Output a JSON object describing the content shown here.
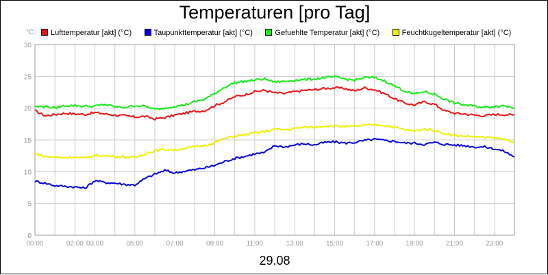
{
  "chart_data": {
    "type": "line",
    "title": "Temperaturen [pro Tag]",
    "y_unit_label": "°C",
    "xlabel": "29.08",
    "ylim": [
      0,
      30
    ],
    "y_ticks": [
      "0",
      "5",
      "10",
      "15",
      "20",
      "25",
      "30"
    ],
    "x_ticks": [
      {
        "hour": 0,
        "label": "00:00"
      },
      {
        "hour": 2,
        "label": "02:00"
      },
      {
        "hour": 3,
        "label": "03:00"
      },
      {
        "hour": 5,
        "label": "05:00"
      },
      {
        "hour": 7,
        "label": "07:00"
      },
      {
        "hour": 9,
        "label": "09:00"
      },
      {
        "hour": 11,
        "label": "11:00"
      },
      {
        "hour": 13,
        "label": "13:00"
      },
      {
        "hour": 15,
        "label": "15:00"
      },
      {
        "hour": 17,
        "label": "17:00"
      },
      {
        "hour": 19,
        "label": "19:00"
      },
      {
        "hour": 21,
        "label": "21:00"
      },
      {
        "hour": 23,
        "label": "23:00"
      }
    ],
    "x_hours": [
      0,
      0.5,
      1,
      1.5,
      2,
      2.5,
      3,
      3.5,
      4,
      4.5,
      5,
      5.5,
      6,
      6.5,
      7,
      7.5,
      8,
      8.5,
      9,
      9.5,
      10,
      10.5,
      11,
      11.5,
      12,
      12.5,
      13,
      13.5,
      14,
      14.5,
      15,
      15.5,
      16,
      16.5,
      17,
      17.5,
      18,
      18.5,
      19,
      19.5,
      20,
      20.5,
      21,
      21.5,
      22,
      22.5,
      23,
      23.5,
      24
    ],
    "legend_position": "top",
    "grid": true,
    "series": [
      {
        "name": "Lufttemperatur [akt] (°C)",
        "color": "#ee1111",
        "values": [
          19.6,
          18.8,
          19.0,
          19.2,
          19.1,
          19.0,
          19.3,
          19.1,
          18.9,
          18.8,
          18.6,
          18.7,
          18.3,
          18.5,
          18.9,
          19.2,
          19.5,
          19.6,
          20.4,
          21.0,
          21.8,
          22.1,
          22.6,
          22.8,
          22.4,
          22.3,
          22.6,
          22.8,
          22.9,
          23.1,
          23.2,
          23.1,
          22.7,
          23.2,
          22.9,
          22.3,
          21.5,
          20.8,
          20.5,
          21.0,
          20.6,
          19.6,
          19.2,
          19.1,
          18.9,
          18.8,
          19.0,
          19.0,
          18.9
        ]
      },
      {
        "name": "Taupunkttemperatur [akt] (°C)",
        "color": "#0000dd",
        "values": [
          8.5,
          8.2,
          7.8,
          7.7,
          7.6,
          7.4,
          8.6,
          8.3,
          8.2,
          8.0,
          7.9,
          8.9,
          9.6,
          10.2,
          9.8,
          10.1,
          10.3,
          10.6,
          11.0,
          11.6,
          12.1,
          12.4,
          12.8,
          13.0,
          14.1,
          13.9,
          14.2,
          14.4,
          14.2,
          14.6,
          14.7,
          14.5,
          14.6,
          14.9,
          15.1,
          14.9,
          14.8,
          14.5,
          14.5,
          14.3,
          14.6,
          14.3,
          14.2,
          14.1,
          13.9,
          13.9,
          13.6,
          13.2,
          12.3
        ]
      },
      {
        "name": "Gefuehlte Temperatur [akt] (°C)",
        "color": "#11ee11",
        "values": [
          20.2,
          20.3,
          20.0,
          20.4,
          20.4,
          20.3,
          20.3,
          20.6,
          20.2,
          20.1,
          20.4,
          20.3,
          19.8,
          20.0,
          20.3,
          20.5,
          21.0,
          21.4,
          22.3,
          23.3,
          24.0,
          24.2,
          24.4,
          24.6,
          24.1,
          24.2,
          24.4,
          24.5,
          24.6,
          24.8,
          24.9,
          24.6,
          24.4,
          24.8,
          24.8,
          24.3,
          23.5,
          22.7,
          22.2,
          22.6,
          22.2,
          21.4,
          20.8,
          20.5,
          20.3,
          20.1,
          20.3,
          20.4,
          20.0
        ]
      },
      {
        "name": "Feuchtkugeltemperatur [akt] (°C)",
        "color": "#eeee00",
        "values": [
          12.9,
          12.4,
          12.3,
          12.2,
          12.3,
          12.1,
          12.6,
          12.5,
          12.4,
          12.3,
          12.2,
          12.8,
          13.3,
          13.5,
          13.4,
          13.7,
          13.9,
          14.1,
          14.6,
          15.2,
          15.6,
          15.8,
          16.1,
          16.3,
          16.7,
          16.6,
          16.8,
          17.0,
          17.0,
          17.2,
          17.2,
          17.1,
          17.1,
          17.3,
          17.4,
          17.3,
          17.0,
          16.6,
          16.4,
          16.7,
          16.5,
          16.0,
          15.7,
          15.6,
          15.5,
          15.4,
          15.3,
          15.1,
          14.7
        ]
      }
    ]
  }
}
